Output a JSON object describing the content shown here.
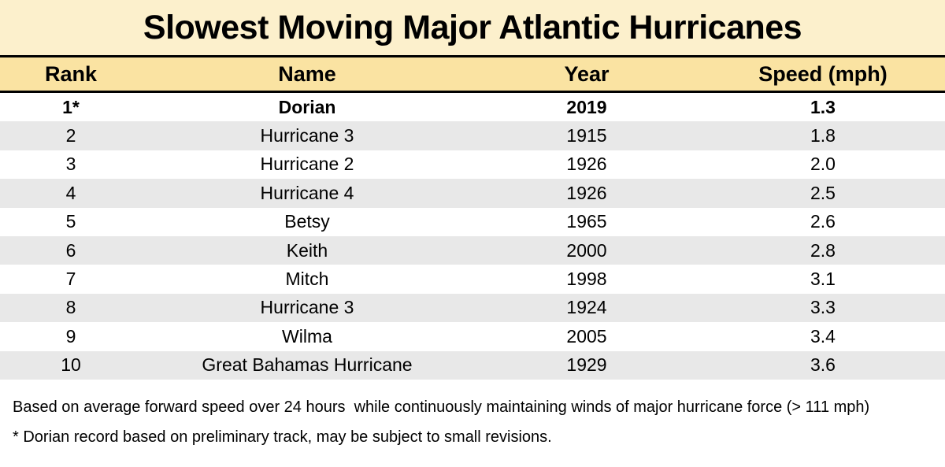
{
  "title": "Slowest Moving Major Atlantic Hurricanes",
  "chart_data": {
    "type": "table",
    "title": "Slowest Moving Major Atlantic Hurricanes",
    "columns": [
      "Rank",
      "Name",
      "Year",
      "Speed (mph)"
    ],
    "rows": [
      {
        "rank": "1*",
        "name": "Dorian",
        "year": "2019",
        "speed": "1.3",
        "bold": true
      },
      {
        "rank": "2",
        "name": "Hurricane 3",
        "year": "1915",
        "speed": "1.8",
        "bold": false
      },
      {
        "rank": "3",
        "name": "Hurricane 2",
        "year": "1926",
        "speed": "2.0",
        "bold": false
      },
      {
        "rank": "4",
        "name": "Hurricane 4",
        "year": "1926",
        "speed": "2.5",
        "bold": false
      },
      {
        "rank": "5",
        "name": "Betsy",
        "year": "1965",
        "speed": "2.6",
        "bold": false
      },
      {
        "rank": "6",
        "name": "Keith",
        "year": "2000",
        "speed": "2.8",
        "bold": false
      },
      {
        "rank": "7",
        "name": "Mitch",
        "year": "1998",
        "speed": "3.1",
        "bold": false
      },
      {
        "rank": "8",
        "name": "Hurricane 3",
        "year": "1924",
        "speed": "3.3",
        "bold": false
      },
      {
        "rank": "9",
        "name": "Wilma",
        "year": "2005",
        "speed": "3.4",
        "bold": false
      },
      {
        "rank": "10",
        "name": "Great Bahamas Hurricane",
        "year": "1929",
        "speed": "3.6",
        "bold": false
      }
    ]
  },
  "footnotes": [
    "Based on average forward speed over 24 hours  while continuously maintaining winds of major hurricane force (> 111 mph)",
    "* Dorian record based on preliminary track, may be subject to small revisions."
  ],
  "colors": {
    "title_bg": "#FCF0CC",
    "header_bg": "#FAE3A2",
    "row_alt_bg": "#E8E8E8",
    "divider": "#000000",
    "text": "#000000"
  }
}
